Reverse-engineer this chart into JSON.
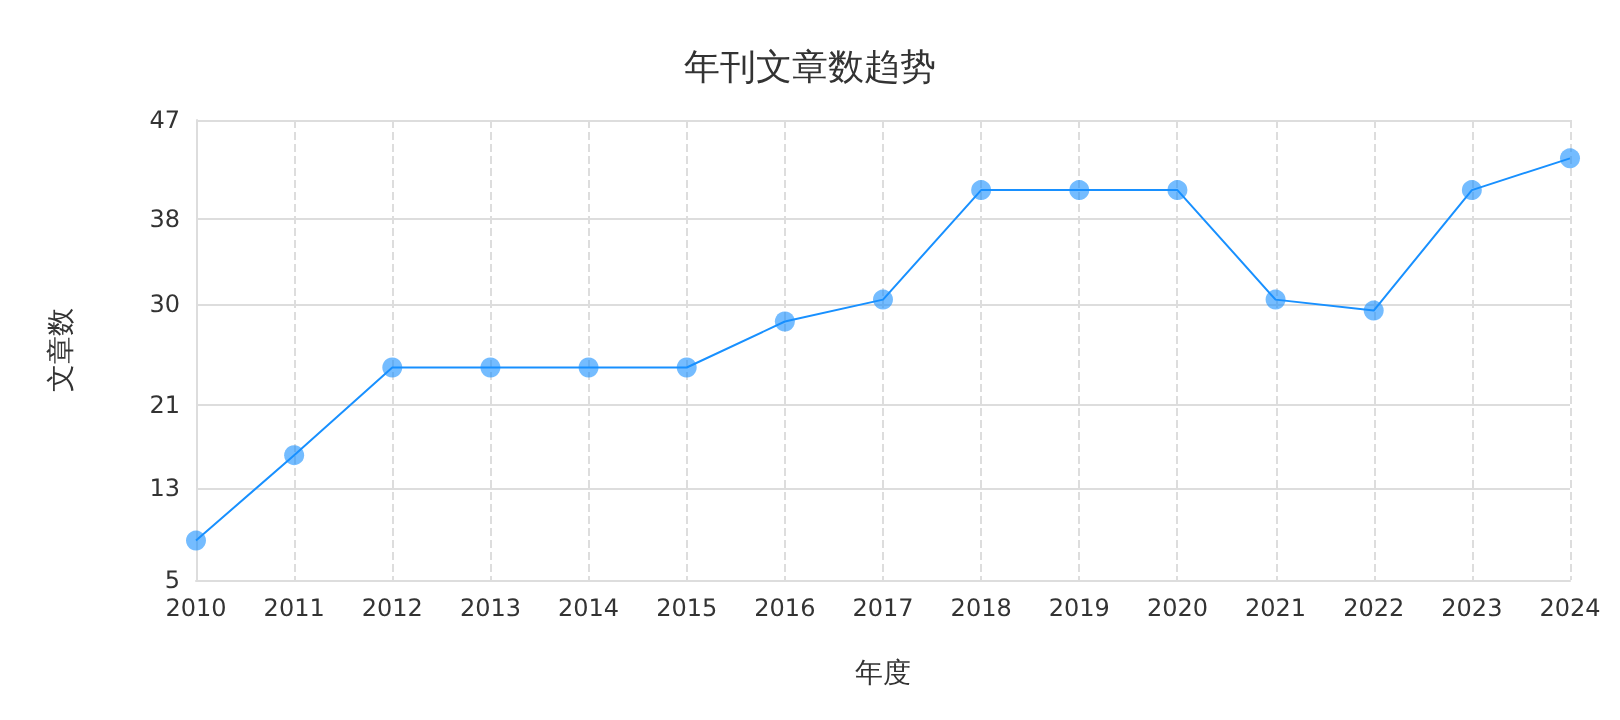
{
  "chart_data": {
    "type": "line",
    "title": "年刊文章数趋势",
    "xlabel": "年度",
    "ylabel": "文章数",
    "categories": [
      "2010",
      "2011",
      "2012",
      "2013",
      "2014",
      "2015",
      "2016",
      "2017",
      "2018",
      "2019",
      "2020",
      "2021",
      "2022",
      "2023",
      "2024"
    ],
    "series": [
      {
        "color": "#1890ff",
        "values": [
          8.6,
          16.4,
          24.4,
          24.4,
          24.4,
          24.4,
          28.6,
          30.6,
          40.6,
          40.6,
          40.6,
          30.6,
          29.6,
          40.6,
          43.5
        ]
      }
    ],
    "ylim": [
      5,
      47
    ],
    "yticks": [
      {
        "value": 5,
        "label": "5"
      },
      {
        "value": 13.4,
        "label": "13"
      },
      {
        "value": 21,
        "label": "21"
      },
      {
        "value": 30.2,
        "label": "30"
      },
      {
        "value": 38,
        "label": "38"
      },
      {
        "value": 47,
        "label": "47"
      }
    ],
    "grid": true,
    "marker": "circle",
    "line_style": "solid"
  }
}
